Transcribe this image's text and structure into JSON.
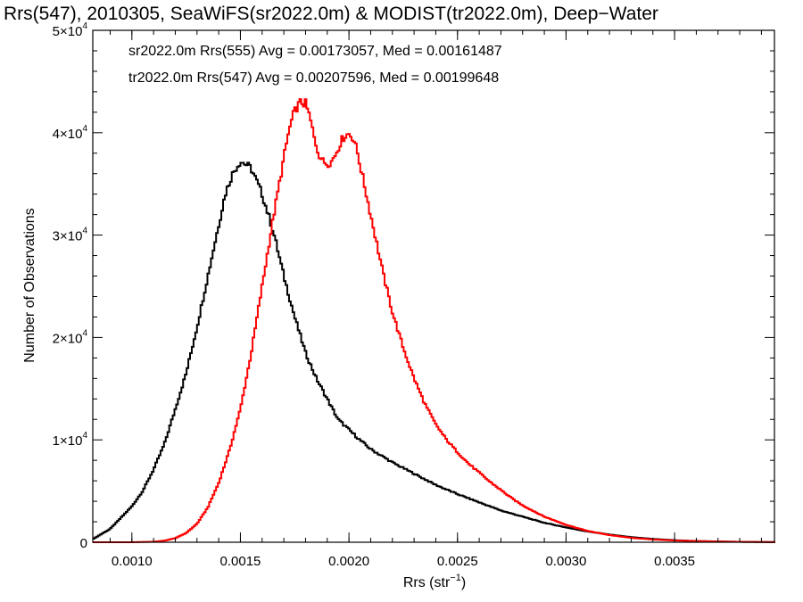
{
  "chart_data": {
    "type": "line",
    "title": "Rrs(547), 2010305, SeaWiFS(sr2022.0m) & MODIST(tr2022.0m), Deep−Water",
    "xlabel": "Rrs (str",
    "xlabel_sup": "−1",
    "xlabel_tail": ")",
    "ylabel": "Number of Observations",
    "xlim": [
      0.00082,
      0.00396
    ],
    "ylim": [
      0,
      50000
    ],
    "x_ticks": [
      {
        "value": 0.001,
        "label": "0.0010"
      },
      {
        "value": 0.0015,
        "label": "0.0015"
      },
      {
        "value": 0.002,
        "label": "0.0020"
      },
      {
        "value": 0.0025,
        "label": "0.0025"
      },
      {
        "value": 0.003,
        "label": "0.0030"
      },
      {
        "value": 0.0035,
        "label": "0.0035"
      }
    ],
    "y_ticks": [
      {
        "value": 0,
        "mant": "0",
        "exp": ""
      },
      {
        "value": 10000,
        "mant": "1×10",
        "exp": "4"
      },
      {
        "value": 20000,
        "mant": "2×10",
        "exp": "4"
      },
      {
        "value": 30000,
        "mant": "3×10",
        "exp": "4"
      },
      {
        "value": 40000,
        "mant": "4×10",
        "exp": "4"
      },
      {
        "value": 50000,
        "mant": "5×10",
        "exp": "4"
      }
    ],
    "legend_position": "top-left",
    "grid": false,
    "series": [
      {
        "legend": "sr2022.0m Rrs(555) Avg = 0.00173057, Med = 0.00161487",
        "color": "#000000",
        "x": [
          0.00082,
          0.0009,
          0.001,
          0.00105,
          0.0011,
          0.00115,
          0.0012,
          0.00125,
          0.0013,
          0.00135,
          0.0014,
          0.00143,
          0.00146,
          0.00148,
          0.0015,
          0.00152,
          0.00155,
          0.0016,
          0.00165,
          0.0017,
          0.00175,
          0.0018,
          0.00185,
          0.0019,
          0.00195,
          0.002,
          0.00205,
          0.0021,
          0.0022,
          0.0023,
          0.0024,
          0.0025,
          0.0026,
          0.0027,
          0.0028,
          0.0029,
          0.003,
          0.0031,
          0.0032,
          0.0033,
          0.0034,
          0.0035,
          0.0036,
          0.0037,
          0.0038,
          0.00396
        ],
        "y": [
          300,
          1300,
          3500,
          5000,
          7100,
          9600,
          13000,
          16500,
          21000,
          26000,
          31000,
          34000,
          35800,
          36600,
          37200,
          37000,
          36500,
          34000,
          30500,
          26000,
          22000,
          18500,
          16000,
          14000,
          12000,
          11000,
          10000,
          9100,
          7800,
          6700,
          5600,
          4700,
          3900,
          3100,
          2500,
          1900,
          1450,
          1050,
          750,
          500,
          320,
          200,
          120,
          80,
          40,
          10
        ]
      },
      {
        "legend": "tr2022.0m Rrs(547) Avg = 0.00207596, Med = 0.00199648",
        "color": "#ff0000",
        "x": [
          0.00082,
          0.001,
          0.0011,
          0.00115,
          0.0012,
          0.00125,
          0.0013,
          0.00135,
          0.0014,
          0.00145,
          0.0015,
          0.00155,
          0.0016,
          0.00165,
          0.0017,
          0.00172,
          0.00174,
          0.00176,
          0.00178,
          0.0018,
          0.00182,
          0.00184,
          0.00186,
          0.00188,
          0.0019,
          0.00192,
          0.00194,
          0.00196,
          0.00198,
          0.002,
          0.00202,
          0.00204,
          0.00206,
          0.00208,
          0.0021,
          0.00213,
          0.00216,
          0.0022,
          0.00225,
          0.0023,
          0.00235,
          0.0024,
          0.00245,
          0.0025,
          0.00255,
          0.0026,
          0.00265,
          0.0027,
          0.00275,
          0.0028,
          0.0029,
          0.003,
          0.0031,
          0.0032,
          0.0033,
          0.0034,
          0.0035,
          0.0036,
          0.0037,
          0.0038,
          0.00396
        ],
        "y": [
          0,
          5,
          50,
          150,
          400,
          900,
          1800,
          3400,
          5800,
          9000,
          13000,
          18500,
          25000,
          31500,
          37500,
          39800,
          41500,
          42500,
          43000,
          42800,
          41500,
          39500,
          38000,
          37200,
          37000,
          37200,
          38000,
          39000,
          39700,
          39900,
          39500,
          38000,
          36000,
          34000,
          32000,
          29000,
          26000,
          22500,
          19000,
          16000,
          13500,
          11500,
          10000,
          8800,
          7700,
          6800,
          5900,
          5100,
          4300,
          3600,
          2500,
          1700,
          1100,
          700,
          430,
          270,
          170,
          110,
          70,
          40,
          15
        ]
      }
    ]
  }
}
